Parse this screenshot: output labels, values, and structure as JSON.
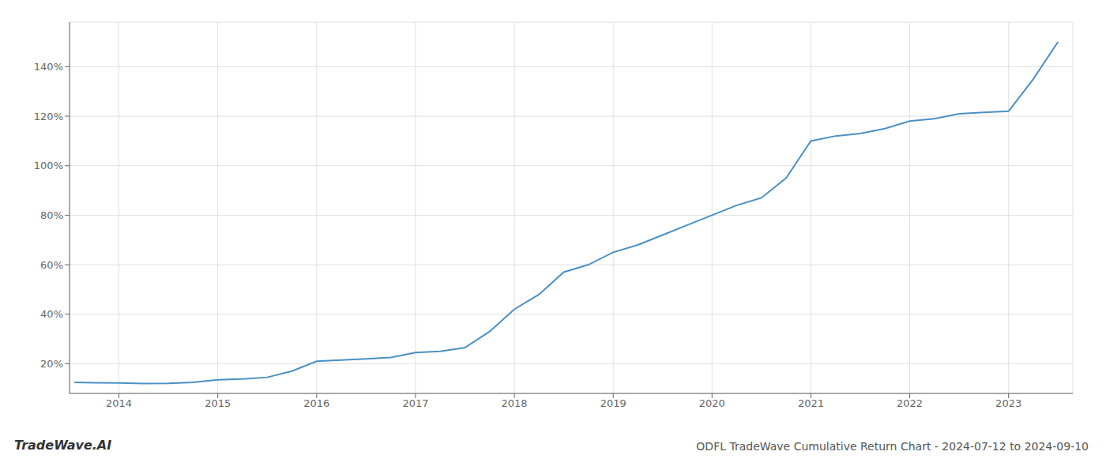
{
  "chart_data": {
    "type": "line",
    "title": "ODFL TradeWave Cumulative Return Chart - 2024-07-12 to 2024-09-10",
    "annotations": [
      {
        "text": "TradeWave.AI"
      }
    ],
    "x": [
      2013.55,
      2013.75,
      2014.0,
      2014.25,
      2014.5,
      2014.75,
      2015.0,
      2015.25,
      2015.5,
      2015.75,
      2016.0,
      2016.25,
      2016.5,
      2016.75,
      2017.0,
      2017.25,
      2017.5,
      2017.75,
      2018.0,
      2018.25,
      2018.5,
      2018.75,
      2019.0,
      2019.25,
      2019.5,
      2019.75,
      2020.0,
      2020.25,
      2020.5,
      2020.75,
      2021.0,
      2021.25,
      2021.5,
      2021.75,
      2022.0,
      2022.25,
      2022.5,
      2022.75,
      2023.0,
      2023.25,
      2023.5
    ],
    "values": [
      12.5,
      12.3,
      12.2,
      12.0,
      12.1,
      12.5,
      13.5,
      13.8,
      14.5,
      17.0,
      21.0,
      21.5,
      22.0,
      22.5,
      24.5,
      25.0,
      26.5,
      33.0,
      42.0,
      48.0,
      57.0,
      60.0,
      65.0,
      68.0,
      72.0,
      76.0,
      80.0,
      84.0,
      87.0,
      95.0,
      110.0,
      112.0,
      113.0,
      115.0,
      118.0,
      119.0,
      121.0,
      121.5,
      122.0,
      135.0,
      150.0
    ],
    "color": "#4a90c4",
    "xlim": [
      2013.5,
      2023.65
    ],
    "xticks": [
      2014,
      2015,
      2016,
      2017,
      2018,
      2019,
      2020,
      2021,
      2022,
      2023
    ],
    "ylim": [
      8,
      158
    ],
    "yticks": [
      {
        "value": 20,
        "label": "20%"
      },
      {
        "value": 40,
        "label": "40%"
      },
      {
        "value": 60,
        "label": "60%"
      },
      {
        "value": 80,
        "label": "80%"
      },
      {
        "value": 100,
        "label": "100%"
      },
      {
        "value": 120,
        "label": "120%"
      },
      {
        "value": 140,
        "label": "140%"
      }
    ],
    "grid": true
  }
}
